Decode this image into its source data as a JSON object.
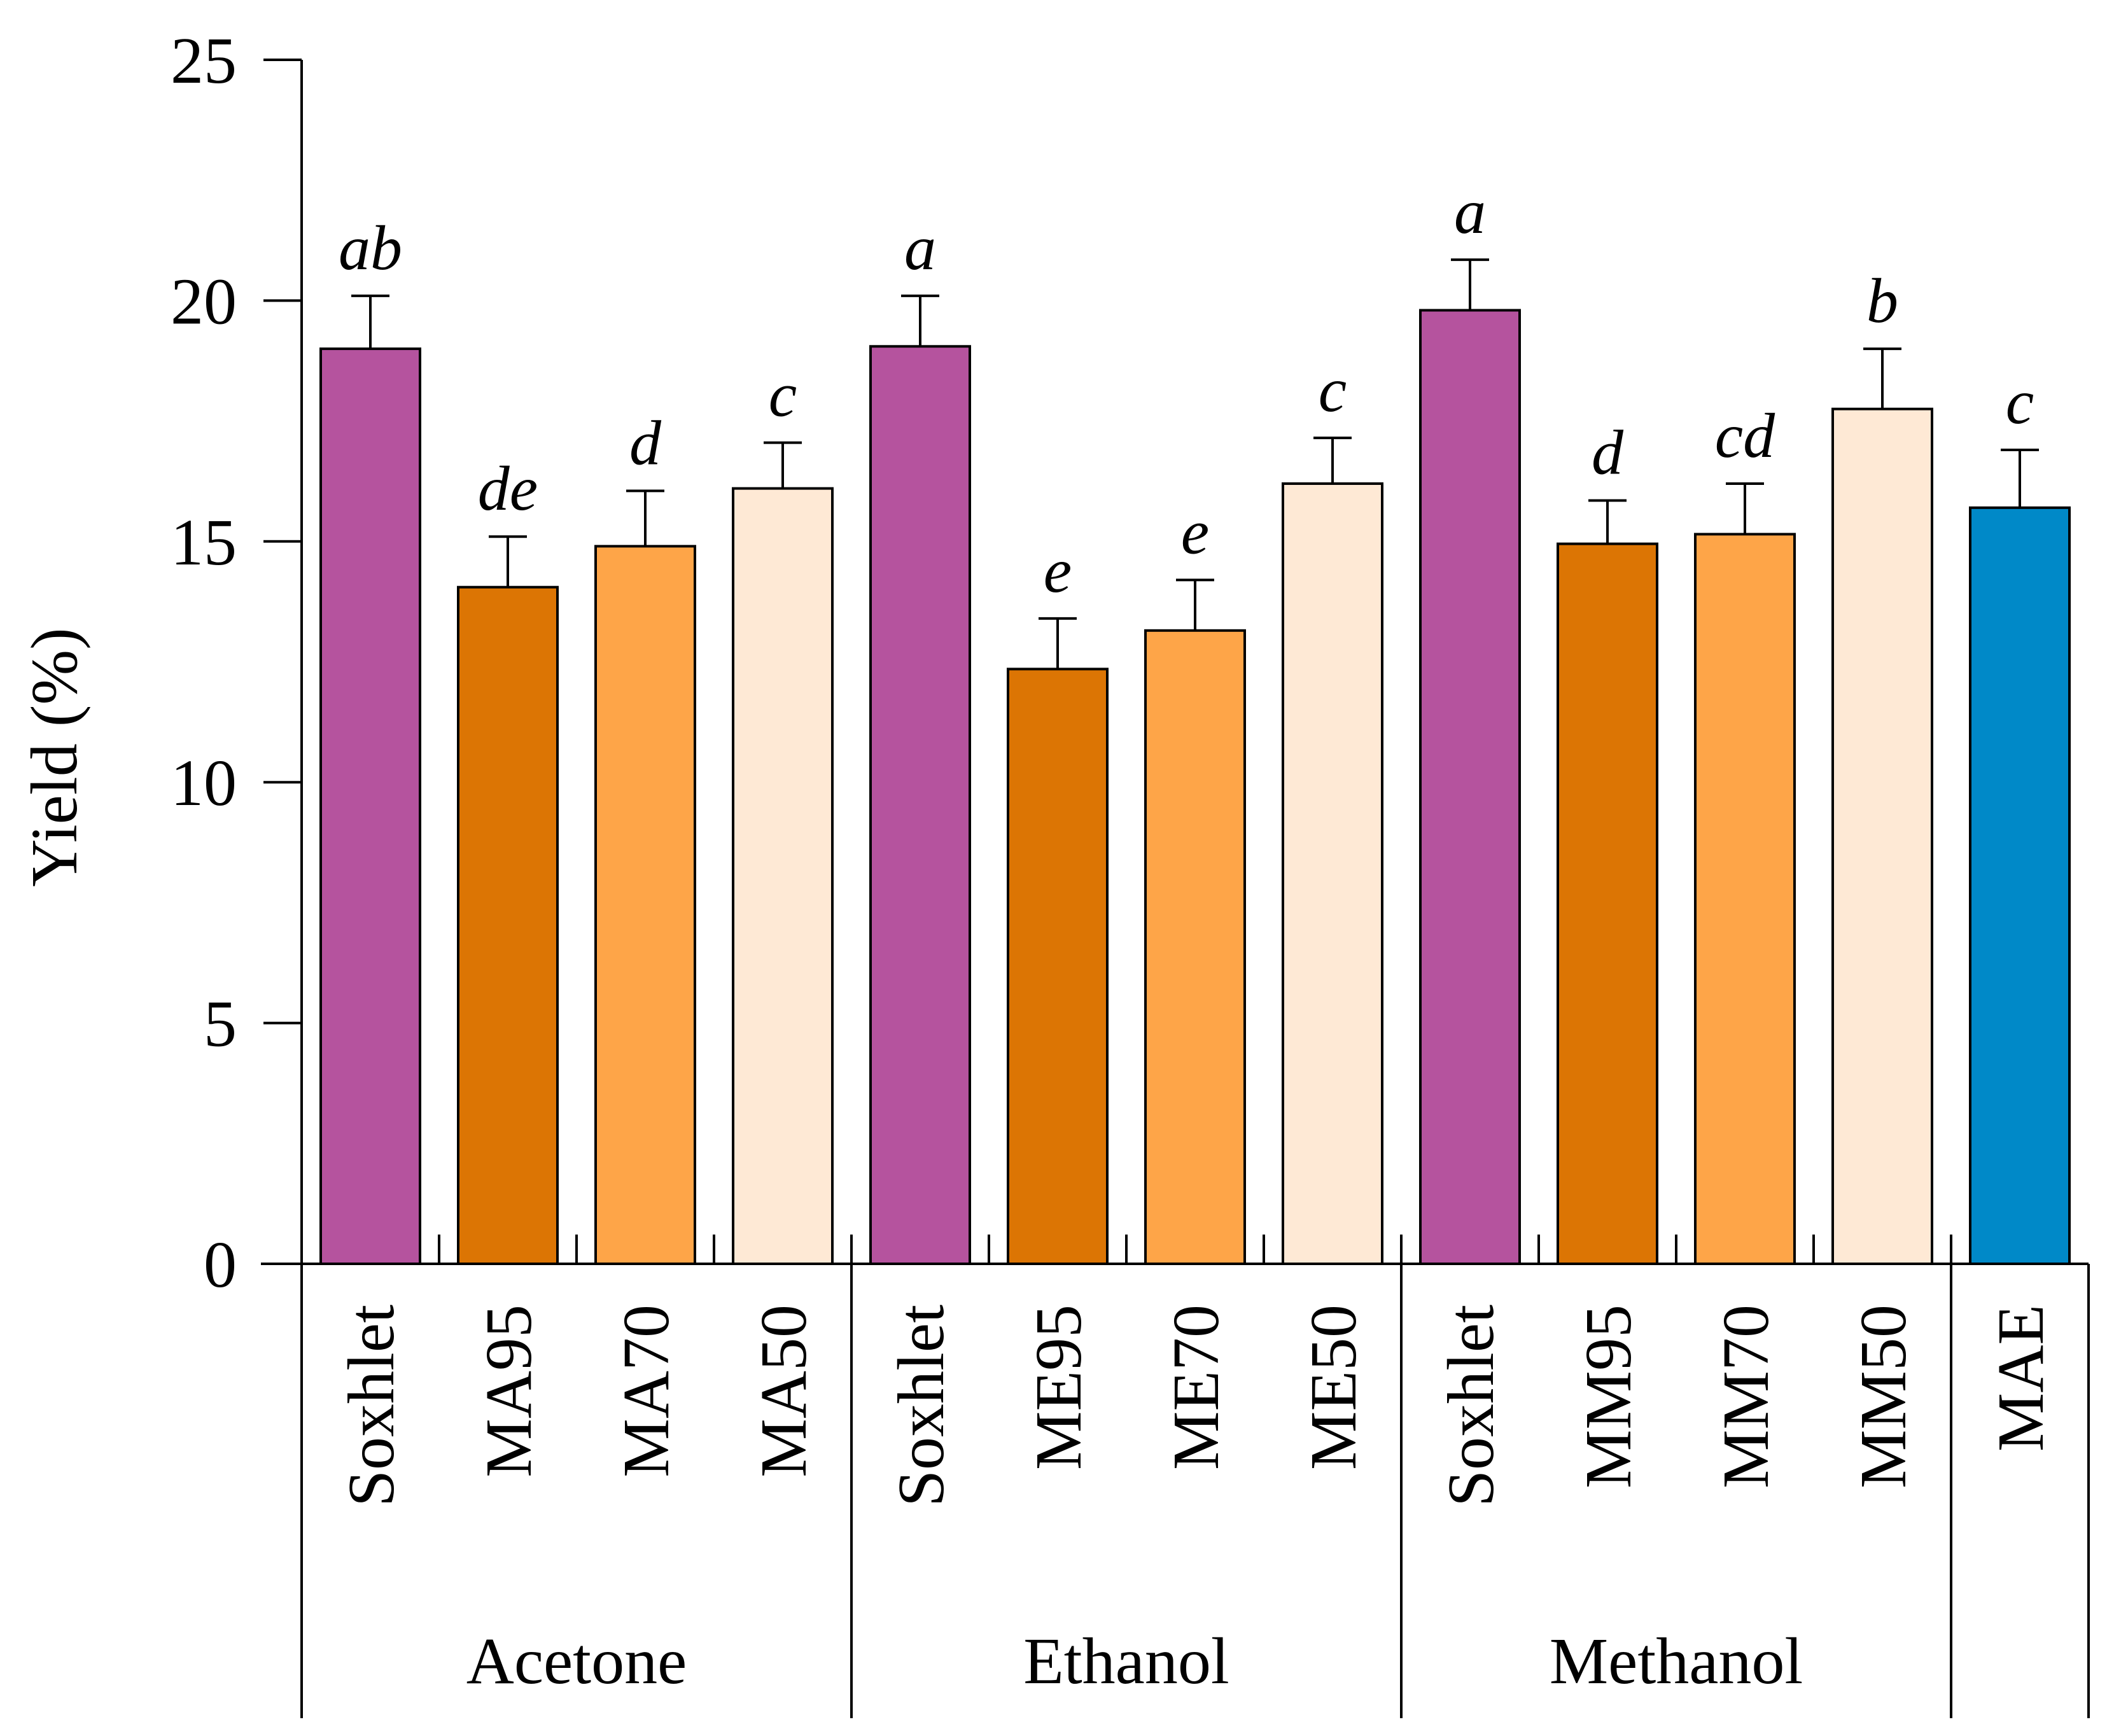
{
  "chart_data": {
    "type": "bar",
    "title": "",
    "xlabel": "",
    "ylabel": "Yield (%)",
    "ylim": [
      0,
      25
    ],
    "yticks": [
      "0",
      "5",
      "10",
      "15",
      "20",
      "25"
    ],
    "groups": [
      {
        "name": "Acetone",
        "members": 4
      },
      {
        "name": "Ethanol",
        "members": 4
      },
      {
        "name": "Methanol",
        "members": 4
      },
      {
        "name": "",
        "members": 1
      }
    ],
    "categories": [
      "Soxhlet",
      "MA95",
      "MA70",
      "MA50",
      "Soxhlet",
      "ME95",
      "ME70",
      "ME50",
      "Soxhlet",
      "MM95",
      "MM70",
      "MM50",
      "MAE"
    ],
    "values": [
      19.0,
      14.05,
      14.9,
      16.1,
      19.05,
      12.35,
      13.15,
      16.2,
      19.8,
      14.95,
      15.15,
      17.75,
      15.7
    ],
    "errors": [
      1.1,
      1.05,
      1.15,
      0.95,
      1.05,
      1.05,
      1.05,
      0.95,
      1.05,
      0.9,
      1.05,
      1.25,
      1.2
    ],
    "significance": [
      "ab",
      "de",
      "d",
      "c",
      "a",
      "e",
      "e",
      "c",
      "a",
      "d",
      "cd",
      "b",
      "c"
    ],
    "colors": [
      "#b5539e",
      "#dc7504",
      "#fea548",
      "#fee9d5",
      "#b5539e",
      "#dc7504",
      "#fea548",
      "#fee9d5",
      "#b5539e",
      "#dc7504",
      "#fea548",
      "#fee9d5",
      "#0089c8"
    ]
  }
}
